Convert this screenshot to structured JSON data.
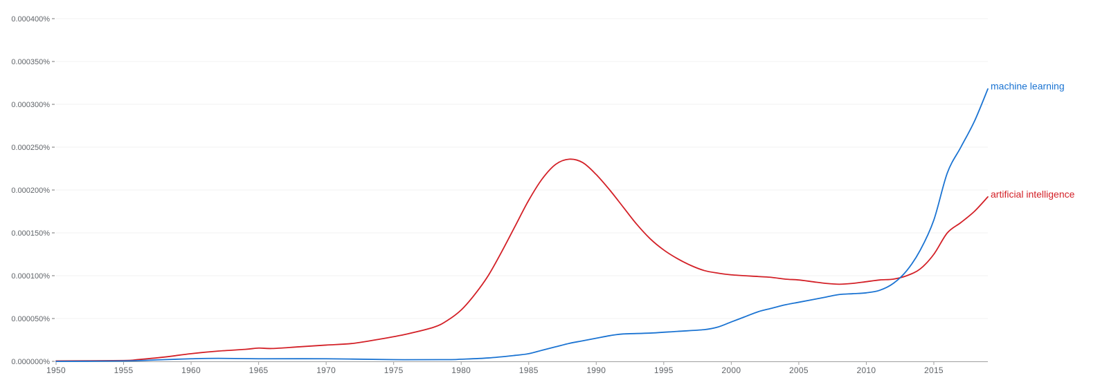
{
  "chart_data": {
    "type": "line",
    "title": "",
    "xlabel": "",
    "ylabel": "",
    "xlim": [
      1950,
      2019
    ],
    "ylim": [
      0,
      0.0004
    ],
    "grid": true,
    "legend_position": "inline-right",
    "y_ticks": [
      "0.000000%",
      "0.000050%",
      "0.000100%",
      "0.000150%",
      "0.000200%",
      "0.000250%",
      "0.000300%",
      "0.000350%",
      "0.000400%"
    ],
    "y_tick_values": [
      0,
      5e-05,
      0.0001,
      0.00015,
      0.0002,
      0.00025,
      0.0003,
      0.00035,
      0.0004
    ],
    "x_ticks": [
      "1950",
      "1955",
      "1960",
      "1965",
      "1970",
      "1975",
      "1980",
      "1985",
      "1990",
      "1995",
      "2000",
      "2005",
      "2010",
      "2015"
    ],
    "x_tick_values": [
      1950,
      1955,
      1960,
      1965,
      1970,
      1975,
      1980,
      1985,
      1990,
      1995,
      2000,
      2005,
      2010,
      2015
    ],
    "value_unit": "percent (values in units of 0.000001%)",
    "series": [
      {
        "name": "machine learning",
        "color": "#1a73d2",
        "x": [
          1950,
          1955,
          1958,
          1960,
          1962,
          1965,
          1970,
          1975,
          1979,
          1980,
          1982,
          1984,
          1985,
          1986,
          1987,
          1988,
          1989,
          1990,
          1991,
          1992,
          1994,
          1996,
          1998,
          1999,
          2000,
          2001,
          2002,
          2003,
          2004,
          2005,
          2006,
          2007,
          2008,
          2009,
          2010,
          2011,
          2012,
          2013,
          2014,
          2015,
          2016,
          2017,
          2018,
          2019
        ],
        "values": [
          0,
          0.5,
          2,
          3,
          3.5,
          3,
          3,
          2,
          2,
          2.5,
          4,
          7,
          9,
          13,
          17,
          21,
          24,
          27,
          30,
          32,
          33,
          35,
          37,
          40,
          46,
          52,
          58,
          62,
          66,
          69,
          72,
          75,
          78,
          79,
          80,
          83,
          91,
          106,
          130,
          165,
          220,
          250,
          280,
          318
        ]
      },
      {
        "name": "artificial intelligence",
        "color": "#d32027",
        "x": [
          1950,
          1955,
          1956,
          1958,
          1960,
          1962,
          1964,
          1965,
          1966,
          1968,
          1970,
          1972,
          1974,
          1976,
          1978,
          1979,
          1980,
          1981,
          1982,
          1983,
          1984,
          1985,
          1986,
          1987,
          1988,
          1989,
          1990,
          1991,
          1992,
          1993,
          1994,
          1995,
          1996,
          1997,
          1998,
          1999,
          2000,
          2002,
          2003,
          2004,
          2005,
          2006,
          2007,
          2008,
          2009,
          2010,
          2011,
          2012,
          2013,
          2014,
          2015,
          2016,
          2017,
          2018,
          2019
        ],
        "values": [
          0.5,
          1,
          2,
          5,
          9,
          12,
          14,
          15.5,
          15,
          17,
          19,
          21,
          26,
          32,
          40,
          48,
          60,
          78,
          100,
          128,
          158,
          188,
          213,
          230,
          236,
          232,
          218,
          200,
          180,
          160,
          143,
          130,
          120,
          112,
          106,
          103,
          101,
          99,
          98,
          96,
          95,
          93,
          91,
          90,
          91,
          93,
          95,
          96,
          100,
          108,
          125,
          150,
          162,
          175,
          192
        ]
      }
    ]
  },
  "labels": {
    "series_0": "machine learning",
    "series_1": "artificial intelligence"
  }
}
